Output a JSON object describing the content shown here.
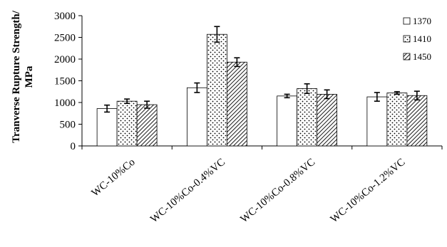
{
  "chart_data": {
    "type": "bar",
    "title": "",
    "xlabel": "",
    "ylabel_lines": [
      "Tranverse Rupture Strength/",
      "MPa"
    ],
    "categories": [
      "WC-10%Co",
      "WC-10%Co-0.4%VC",
      "WC-10%Co-0.8%VC",
      "WC-10%Co-1.2%VC"
    ],
    "ylim": [
      0,
      3000
    ],
    "yticks": [
      0,
      500,
      1000,
      1500,
      2000,
      2500,
      3000
    ],
    "legend_position": "top-right",
    "grid": false,
    "error_bars": true,
    "series": [
      {
        "name": "1370",
        "pattern": "blank",
        "values": [
          860,
          1340,
          1150,
          1130
        ],
        "errors": [
          80,
          110,
          40,
          100
        ]
      },
      {
        "name": "1410",
        "pattern": "dots",
        "values": [
          1030,
          2570,
          1320,
          1220
        ],
        "errors": [
          50,
          180,
          110,
          30
        ]
      },
      {
        "name": "1450",
        "pattern": "diagonal-hatch",
        "values": [
          950,
          1930,
          1190,
          1160
        ],
        "errors": [
          80,
          100,
          100,
          100
        ]
      }
    ]
  }
}
